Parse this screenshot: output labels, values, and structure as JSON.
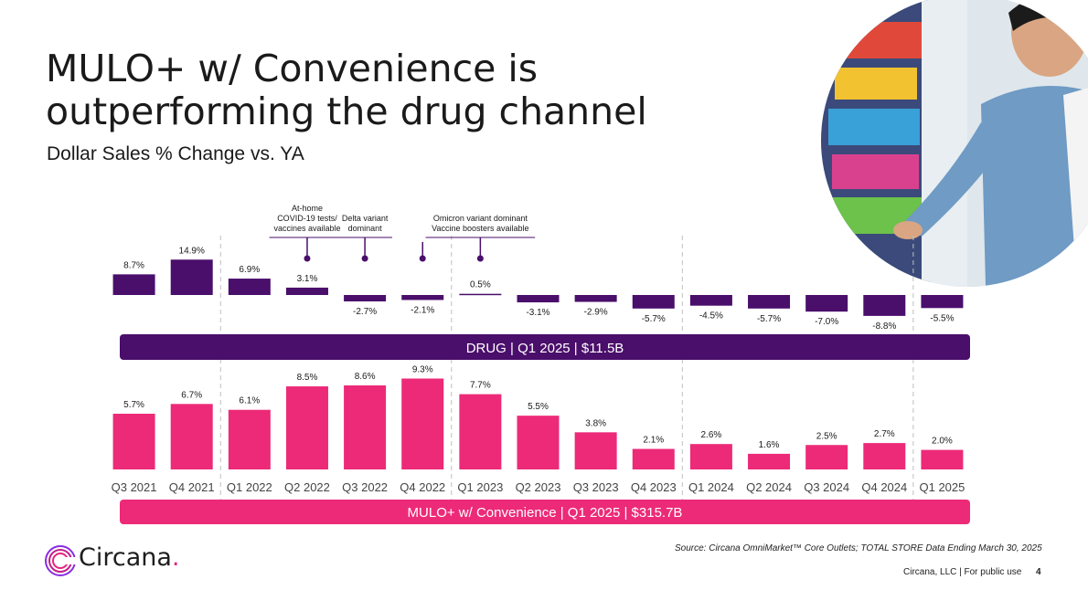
{
  "slide": {
    "title": "MULO+ w/ Convenience is outperforming the drug channel",
    "subtitle": "Dollar Sales % Change vs. YA",
    "source": "Source: Circana OmniMarket™ Core Outlets; TOTAL STORE Data Ending March 30, 2025",
    "footer_company": "Circana, LLC |  For public use",
    "page_number": "4",
    "logo_text": "Circana",
    "logo_dot": "."
  },
  "colors": {
    "drug": "#4a0e6b",
    "mulo": "#ec2a78",
    "text": "#1a1a1a",
    "divider": "#bfbfbf"
  },
  "photo": {
    "icon": "person-shopping-photo"
  },
  "chart_data": {
    "type": "bar",
    "categories": [
      "Q3  2021",
      "Q4 2021",
      "Q1 2022",
      "Q2 2022",
      "Q3 2022",
      "Q4 2022",
      "Q1 2023",
      "Q2 2023",
      "Q3 2023",
      "Q4 2023",
      "Q1 2024",
      "Q2 2024",
      "Q3 2024",
      "Q4 2024",
      "Q1 2025"
    ],
    "series": [
      {
        "name": "DRUG | Q1 2025 | $11.5B",
        "values": [
          8.7,
          14.9,
          6.9,
          3.1,
          -2.7,
          -2.1,
          0.5,
          -3.1,
          -2.9,
          -5.7,
          -4.5,
          -5.7,
          -7.0,
          -8.8,
          -5.5
        ],
        "labels": [
          "8.7%",
          "14.9%",
          "6.9%",
          "3.1%",
          "-2.7%",
          "-2.1%",
          "0.5%",
          "-3.1%",
          "-2.9%",
          "-5.7%",
          "-4.5%",
          "-5.7%",
          "-7.0%",
          "-8.8%",
          "-5.5%"
        ]
      },
      {
        "name": "MULO+ w/ Convenience | Q1 2025 | $315.7B",
        "values": [
          5.7,
          6.7,
          6.1,
          8.5,
          8.6,
          9.3,
          7.7,
          5.5,
          3.8,
          2.1,
          2.6,
          1.6,
          2.5,
          2.7,
          2.0
        ],
        "labels": [
          "5.7%",
          "6.7%",
          "6.1%",
          "8.5%",
          "8.6%",
          "9.3%",
          "7.7%",
          "5.5%",
          "3.8%",
          "2.1%",
          "2.6%",
          "1.6%",
          "2.5%",
          "2.7%",
          "2.0%"
        ]
      }
    ],
    "annotations": [
      {
        "lines": [
          "At-home",
          "COVID-19 tests/",
          "vaccines available"
        ],
        "category": "Q2 2022"
      },
      {
        "lines": [
          "Delta variant",
          "dominant"
        ],
        "category": "Q3 2022"
      },
      {
        "lines": [],
        "category": "Q4 2022"
      },
      {
        "lines": [
          "Omicron variant dominant",
          "Vaccine boosters available"
        ],
        "category": "Q1 2023"
      }
    ],
    "year_dividers_after": [
      "Q4 2021",
      "Q4 2022",
      "Q4 2023",
      "Q4 2024"
    ]
  }
}
